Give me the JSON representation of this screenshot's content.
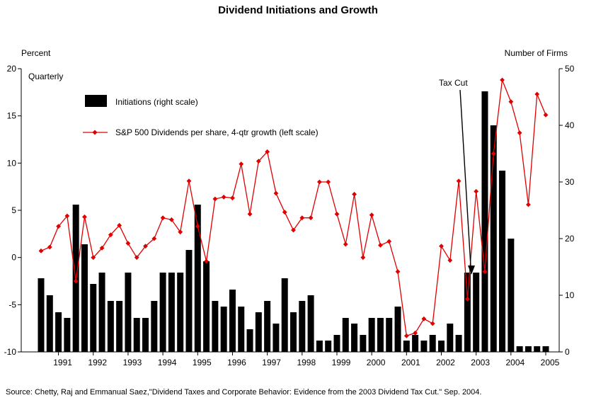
{
  "annotations": {
    "frequency": "Quarterly",
    "tax_cut": "Tax Cut"
  },
  "legend": {
    "bar_label": "Initiations (right scale)",
    "line_label": "S&P 500 Dividends per share, 4-qtr growth (left scale)"
  },
  "source": "Source: Chetty, Raj and Emmanual Saez,\"Dividend Taxes and Corporate Behavior: Evidence from the 2003 Dividend Tax Cut.\" Sep. 2004.",
  "colors": {
    "bar": "#000000",
    "line": "#e00000",
    "left_axis_text": "#e00000",
    "axis": "#000000"
  },
  "chart_data": {
    "type": "combo-bar-line",
    "title": "Dividend Initiations and Growth",
    "frequency": "Quarterly",
    "x": [
      "1990Q3",
      "1990Q4",
      "1991Q1",
      "1991Q2",
      "1991Q3",
      "1991Q4",
      "1992Q1",
      "1992Q2",
      "1992Q3",
      "1992Q4",
      "1993Q1",
      "1993Q2",
      "1993Q3",
      "1993Q4",
      "1994Q1",
      "1994Q2",
      "1994Q3",
      "1994Q4",
      "1995Q1",
      "1995Q2",
      "1995Q3",
      "1995Q4",
      "1996Q1",
      "1996Q2",
      "1996Q3",
      "1996Q4",
      "1997Q1",
      "1997Q2",
      "1997Q3",
      "1997Q4",
      "1998Q1",
      "1998Q2",
      "1998Q3",
      "1998Q4",
      "1999Q1",
      "1999Q2",
      "1999Q3",
      "1999Q4",
      "2000Q1",
      "2000Q2",
      "2000Q3",
      "2000Q4",
      "2001Q1",
      "2001Q2",
      "2001Q3",
      "2001Q4",
      "2002Q1",
      "2002Q2",
      "2002Q3",
      "2002Q4",
      "2003Q1",
      "2003Q2",
      "2003Q3",
      "2003Q4",
      "2004Q1",
      "2004Q2",
      "2004Q3",
      "2004Q4",
      "2005Q1"
    ],
    "x_tick_years": [
      1991,
      1992,
      1993,
      1994,
      1995,
      1996,
      1997,
      1998,
      1999,
      2000,
      2001,
      2002,
      2003,
      2004,
      2005
    ],
    "left_axis": {
      "label": "Percent",
      "ticks": [
        20,
        15,
        10,
        5,
        0,
        -5,
        -10
      ],
      "range": [
        -10,
        20
      ]
    },
    "right_axis": {
      "label": "Number of Firms",
      "ticks": [
        50,
        40,
        30,
        20,
        10,
        0
      ],
      "range": [
        0,
        50
      ]
    },
    "series": [
      {
        "name": "Initiations (right scale)",
        "type": "bar",
        "axis": "right",
        "values": [
          13,
          10,
          7,
          6,
          26,
          19,
          12,
          14,
          9,
          9,
          14,
          6,
          6,
          9,
          14,
          14,
          14,
          18,
          26,
          16,
          9,
          8,
          11,
          8,
          4,
          7,
          9,
          5,
          13,
          7,
          9,
          10,
          2,
          2,
          3,
          6,
          5,
          3,
          6,
          6,
          6,
          8,
          2,
          3,
          2,
          3,
          2,
          5,
          3,
          14,
          14,
          46,
          40,
          32,
          20,
          1,
          1,
          1,
          1
        ]
      },
      {
        "name": "S&P 500 Dividends per share, 4-qtr growth (left scale)",
        "type": "line",
        "axis": "left",
        "values": [
          0.7,
          1.1,
          3.3,
          4.4,
          -2.5,
          4.3,
          0.0,
          1.0,
          2.4,
          3.4,
          1.5,
          0.0,
          1.2,
          2.0,
          4.2,
          4.0,
          2.7,
          8.1,
          3.3,
          -0.4,
          6.2,
          6.4,
          6.3,
          9.9,
          4.6,
          10.2,
          11.2,
          6.8,
          4.8,
          2.9,
          4.2,
          4.2,
          8.0,
          8.0,
          4.6,
          1.4,
          6.7,
          0.0,
          4.5,
          1.3,
          1.7,
          -1.5,
          -8.3,
          -8.0,
          -6.5,
          -7.0,
          1.2,
          -0.3,
          8.1,
          -4.4,
          7.0,
          -1.5,
          11.0,
          18.8,
          16.5,
          13.2,
          5.6,
          17.3,
          15.1
        ]
      }
    ],
    "annotation": {
      "text": "Tax Cut",
      "points_at": "2003Q1"
    },
    "legend_position": "top-left-inside",
    "grid": false
  }
}
